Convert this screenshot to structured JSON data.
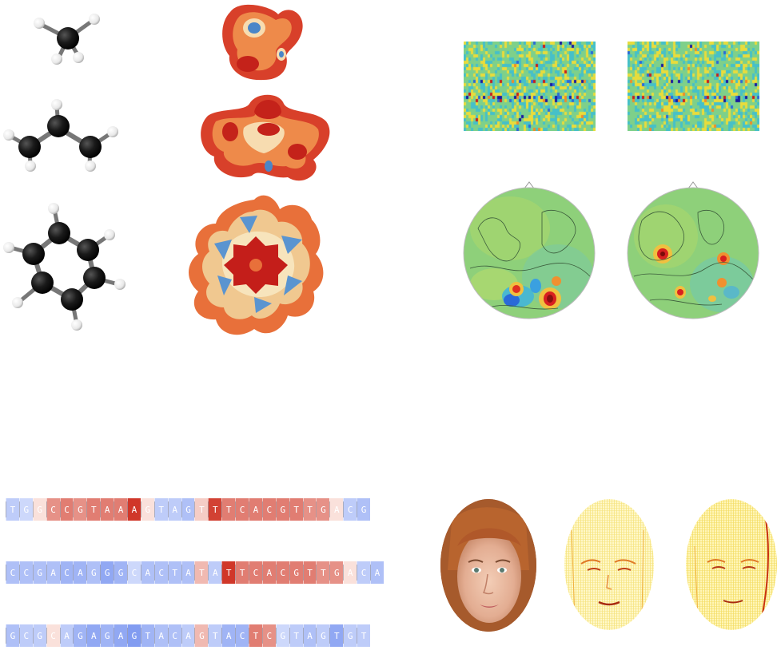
{
  "molecules": [
    {
      "name": "methane"
    },
    {
      "name": "propane-like chain"
    },
    {
      "name": "benzene"
    }
  ],
  "heatmaps": [
    {
      "name": "heatmap-left"
    },
    {
      "name": "heatmap-right"
    }
  ],
  "topomaps": [
    {
      "name": "topomap-left"
    },
    {
      "name": "topomap-right"
    }
  ],
  "sequences": [
    {
      "letters": [
        "T",
        "G",
        "G",
        "C",
        "C",
        "G",
        "T",
        "A",
        "A",
        "A",
        "G",
        "T",
        "A",
        "G",
        "T",
        "T",
        "T",
        "C",
        "A",
        "C",
        "G",
        "T",
        "T",
        "G",
        "A",
        "C",
        "G"
      ],
      "scores": [
        -0.3,
        -0.2,
        0.1,
        0.5,
        0.6,
        0.5,
        0.6,
        0.6,
        0.6,
        0.95,
        0.1,
        -0.3,
        -0.3,
        -0.4,
        0.2,
        0.9,
        0.6,
        0.6,
        0.6,
        0.6,
        0.6,
        0.6,
        0.5,
        0.5,
        0.1,
        -0.3,
        -0.4
      ]
    },
    {
      "letters": [
        "C",
        "C",
        "G",
        "A",
        "C",
        "A",
        "G",
        "G",
        "G",
        "C",
        "A",
        "C",
        "T",
        "A",
        "T",
        "A",
        "T",
        "T",
        "C",
        "A",
        "C",
        "G",
        "T",
        "T",
        "G",
        "A",
        "C",
        "A"
      ],
      "scores": [
        -0.4,
        -0.4,
        -0.4,
        -0.4,
        -0.5,
        -0.5,
        -0.4,
        -0.6,
        -0.5,
        -0.2,
        -0.4,
        -0.4,
        -0.4,
        -0.4,
        0.3,
        -0.3,
        0.95,
        0.6,
        0.6,
        0.6,
        0.6,
        0.6,
        0.6,
        0.5,
        0.5,
        0.1,
        -0.3,
        -0.4
      ]
    },
    {
      "letters": [
        "G",
        "C",
        "G",
        "C",
        "A",
        "G",
        "A",
        "G",
        "A",
        "G",
        "T",
        "A",
        "C",
        "A",
        "G",
        "T",
        "A",
        "C",
        "T",
        "C",
        "G",
        "T",
        "A",
        "G",
        "T",
        "G",
        "T"
      ],
      "scores": [
        -0.4,
        -0.3,
        -0.3,
        0.1,
        -0.3,
        -0.5,
        -0.6,
        -0.5,
        -0.6,
        -0.7,
        -0.5,
        -0.4,
        -0.4,
        -0.3,
        0.3,
        -0.3,
        -0.5,
        -0.5,
        0.6,
        0.5,
        -0.2,
        -0.3,
        -0.4,
        -0.3,
        -0.6,
        -0.3,
        -0.3
      ]
    }
  ],
  "faces": [
    {
      "name": "face-photo"
    },
    {
      "name": "face-saliency-1"
    },
    {
      "name": "face-saliency-2"
    }
  ]
}
